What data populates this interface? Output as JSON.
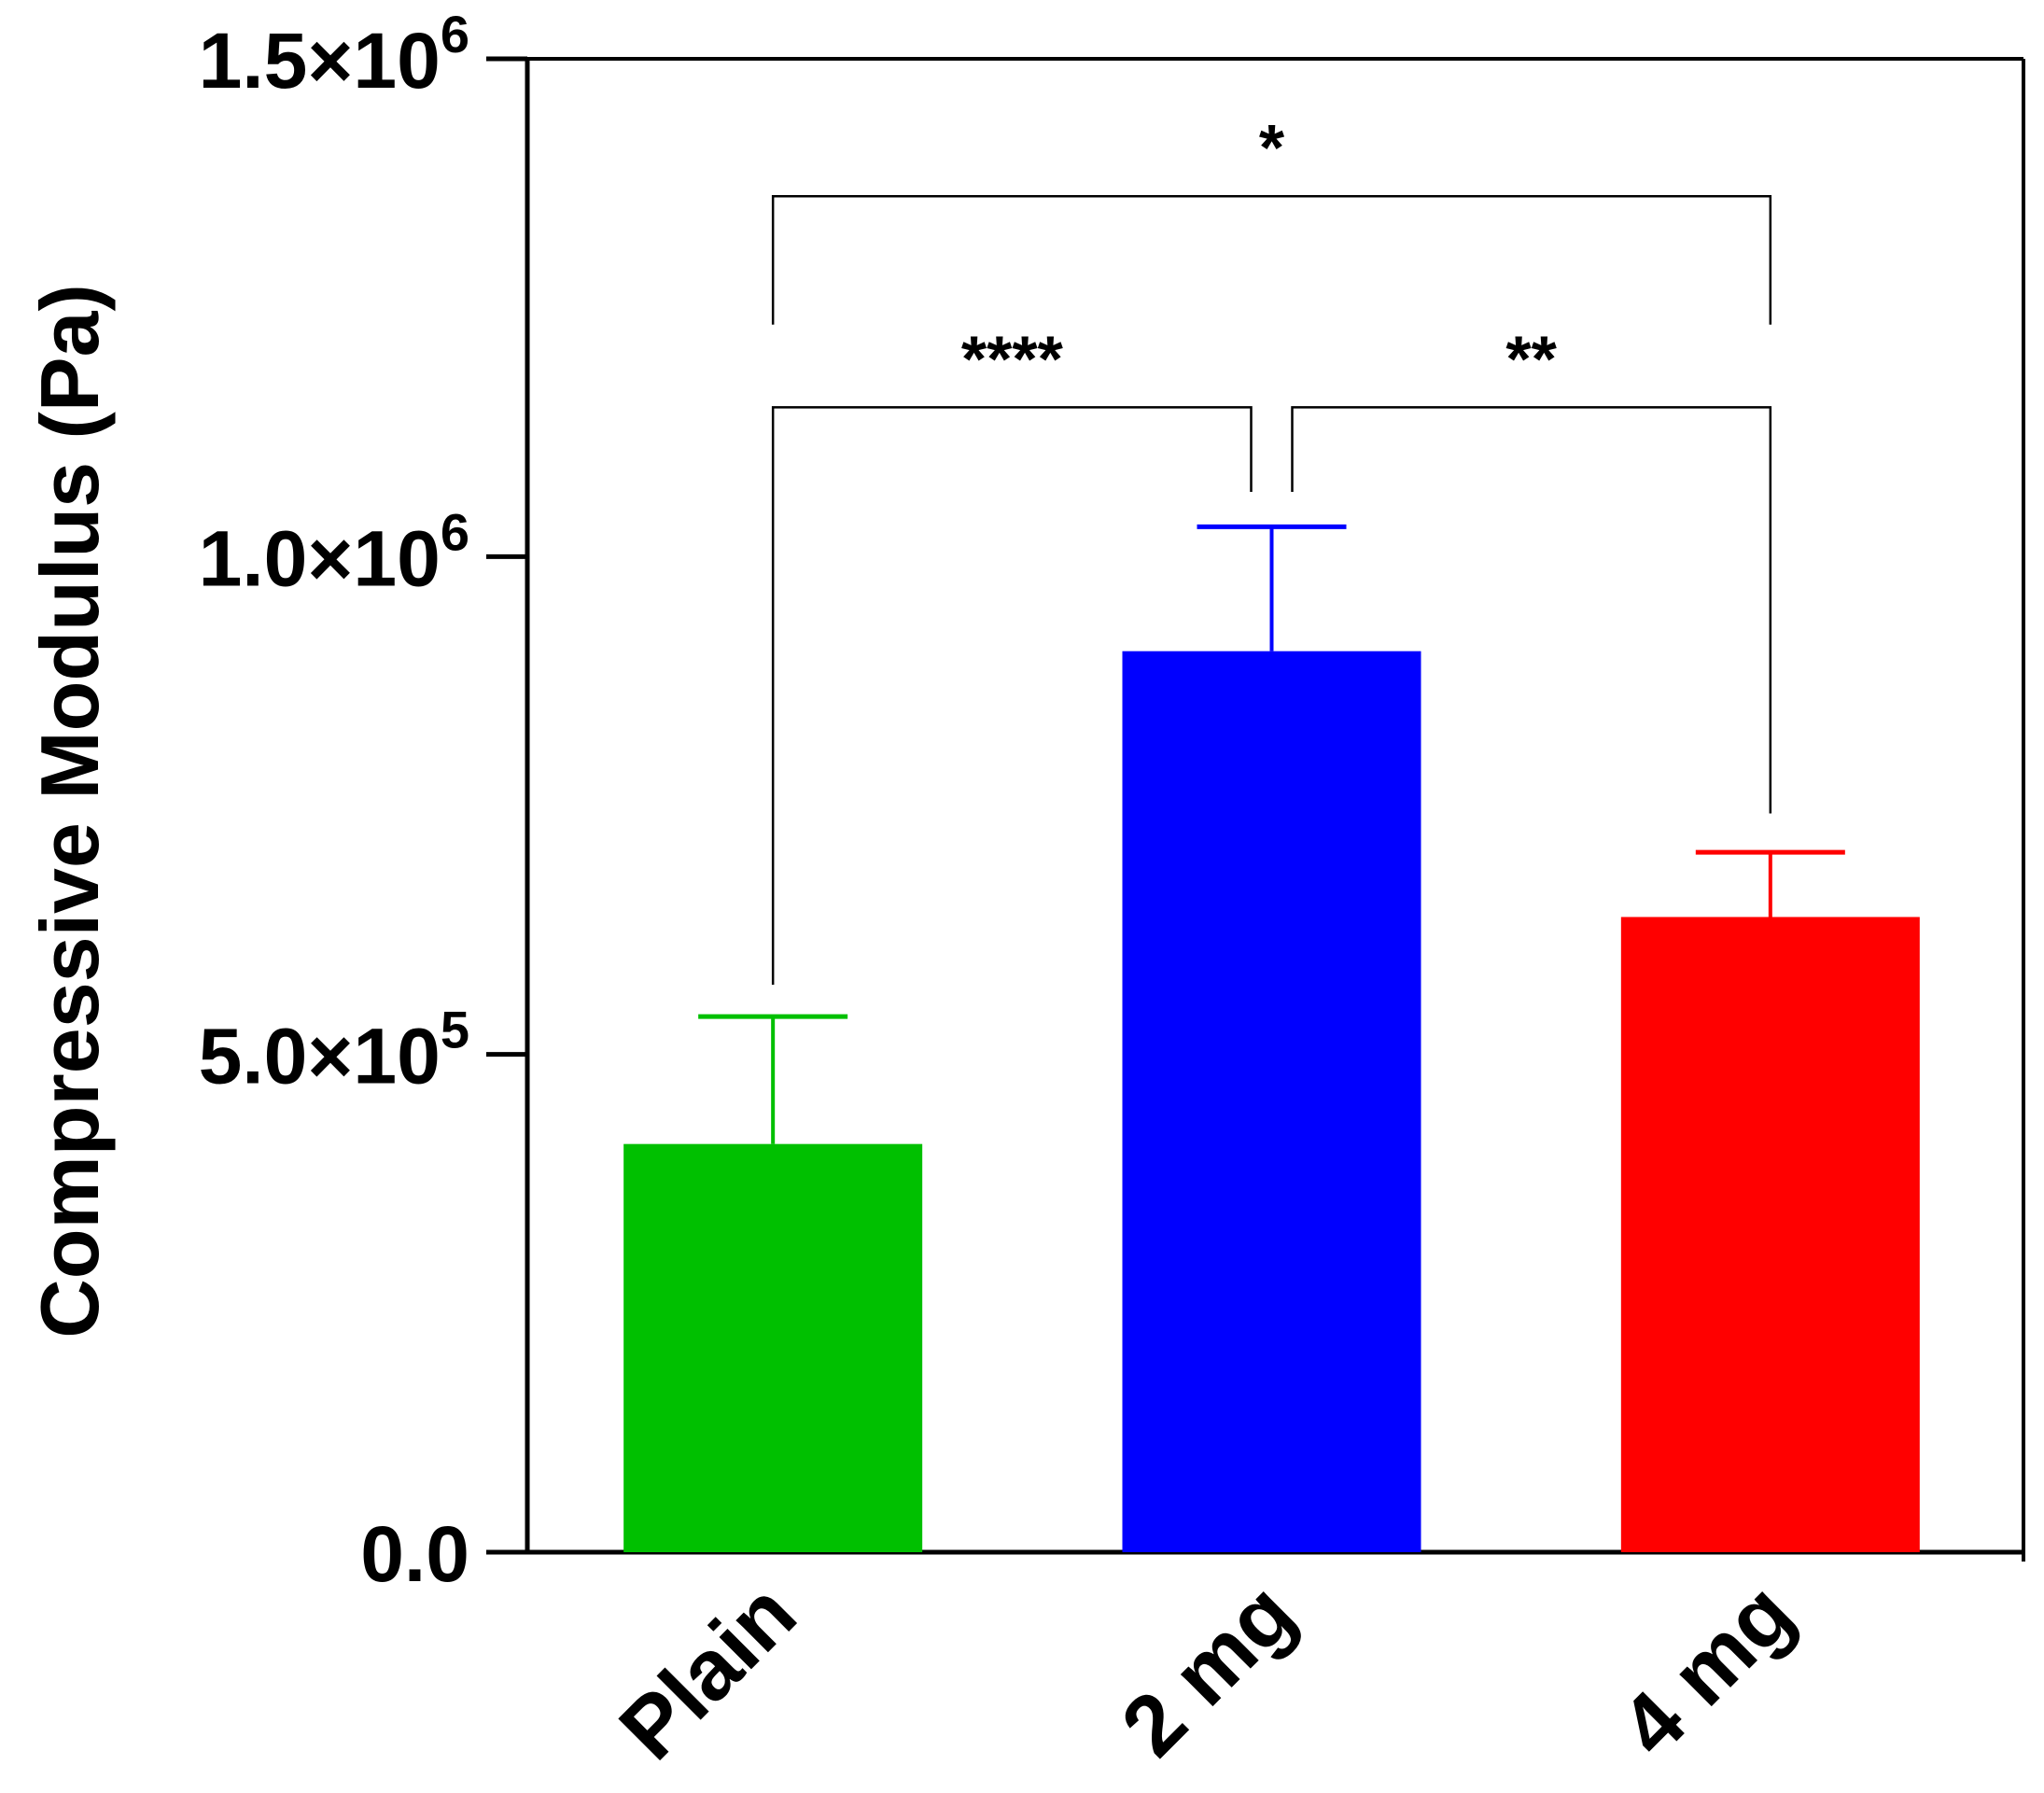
{
  "chart_data": {
    "type": "bar",
    "title": "",
    "xlabel": "",
    "ylabel": "Compressive Modulus (Pa)",
    "ylim": [
      0,
      1500000
    ],
    "grid": false,
    "categories": [
      "Plain",
      "2 mg",
      "4 mg"
    ],
    "values": [
      410000,
      905000,
      638000
    ],
    "errors": [
      128000,
      125000,
      65000
    ],
    "colors": [
      "#00c000",
      "#0000ff",
      "#ff0000"
    ],
    "yticks": [
      {
        "value": 0,
        "label": "0.0",
        "sup": ""
      },
      {
        "value": 500000,
        "label": "5.0×10",
        "sup": "5"
      },
      {
        "value": 1000000,
        "label": "1.0×10",
        "sup": "6"
      },
      {
        "value": 1500000,
        "label": "1.5×10",
        "sup": "6"
      }
    ],
    "significance": [
      {
        "from": "Plain",
        "to": "2 mg",
        "label": "****"
      },
      {
        "from": "2 mg",
        "to": "4 mg",
        "label": "**"
      },
      {
        "from": "Plain",
        "to": "4 mg",
        "label": "*"
      }
    ]
  }
}
